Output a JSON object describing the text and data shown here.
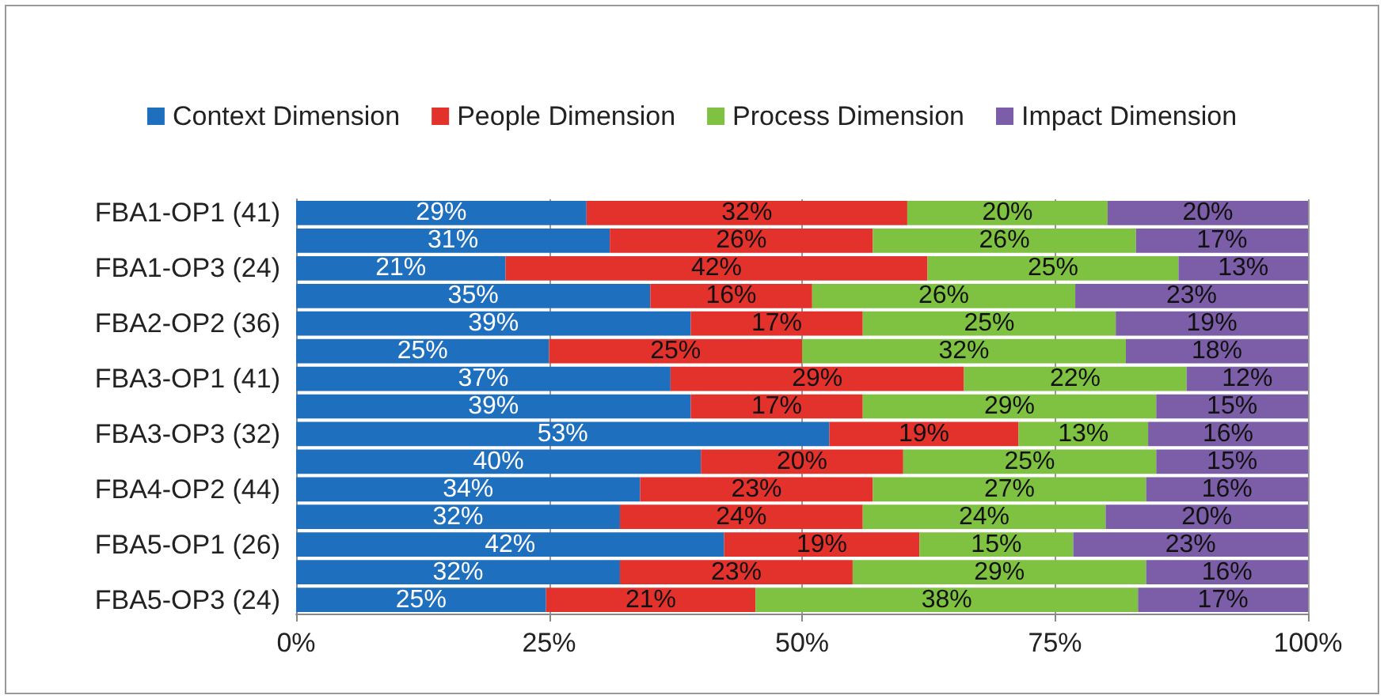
{
  "chart_data": {
    "type": "bar",
    "orientation": "horizontal",
    "stacked": true,
    "categories": [
      "FBA1-OP1 (41)",
      null,
      "FBA1-OP3 (24)",
      null,
      "FBA2-OP2 (36)",
      null,
      "FBA3-OP1 (41)",
      null,
      "FBA3-OP3 (32)",
      null,
      "FBA4-OP2 (44)",
      null,
      "FBA5-OP1 (26)",
      null,
      "FBA5-OP3 (24)"
    ],
    "series": [
      {
        "name": "Context Dimension",
        "color": "#1f6fbf",
        "values": [
          28.7,
          31,
          20.7,
          35,
          39,
          25,
          37,
          39,
          52.7,
          40,
          34,
          32,
          42.3,
          32,
          24.7
        ],
        "value_labels": [
          "29%",
          "31%",
          "21%",
          "35%",
          "39%",
          "25%",
          "37%",
          "39%",
          "53%",
          "40%",
          "34%",
          "32%",
          "42%",
          "32%",
          "25%"
        ]
      },
      {
        "name": "People Dimension",
        "color": "#e3312b",
        "values": [
          31.7,
          26,
          41.7,
          16,
          17,
          25,
          29,
          17,
          18.7,
          20,
          23,
          24,
          19.3,
          23,
          20.7
        ],
        "value_labels": [
          "32%",
          "26%",
          "42%",
          "16%",
          "17%",
          "25%",
          "29%",
          "17%",
          "19%",
          "20%",
          "23%",
          "24%",
          "19%",
          "23%",
          "21%"
        ]
      },
      {
        "name": "Process Dimension",
        "color": "#7fc241",
        "values": [
          19.8,
          26,
          24.8,
          26,
          25,
          32,
          22,
          29,
          12.8,
          25,
          27,
          24,
          15.2,
          29,
          37.8
        ],
        "value_labels": [
          "20%",
          "26%",
          "25%",
          "26%",
          "25%",
          "32%",
          "22%",
          "29%",
          "13%",
          "25%",
          "27%",
          "24%",
          "15%",
          "29%",
          "38%"
        ]
      },
      {
        "name": "Impact Dimension",
        "color": "#7b5ea7",
        "values": [
          19.8,
          17,
          12.8,
          23,
          19,
          18,
          12,
          15,
          15.8,
          15,
          16,
          20,
          23.2,
          16,
          16.8
        ],
        "value_labels": [
          "20%",
          "17%",
          "13%",
          "23%",
          "19%",
          "18%",
          "12%",
          "15%",
          "16%",
          "15%",
          "16%",
          "20%",
          "23%",
          "16%",
          "17%"
        ]
      }
    ],
    "xlim": [
      0,
      100
    ],
    "xticks": [
      {
        "value": 0,
        "label": "0%"
      },
      {
        "value": 25,
        "label": "25%"
      },
      {
        "value": 50,
        "label": "50%"
      },
      {
        "value": 75,
        "label": "75%"
      },
      {
        "value": 100,
        "label": "100%"
      }
    ],
    "grid": "x",
    "legend": "top"
  }
}
